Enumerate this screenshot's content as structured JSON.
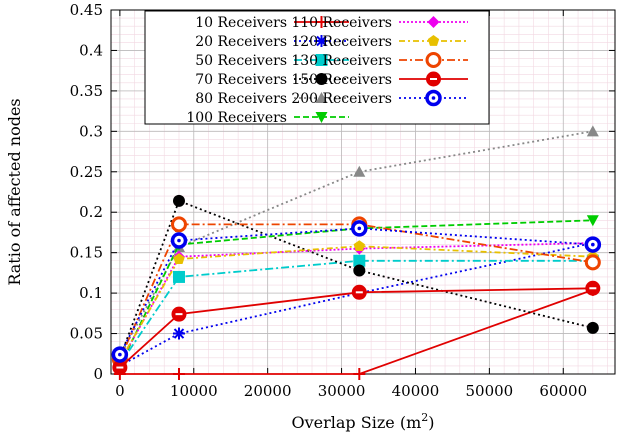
{
  "chart_data": {
    "type": "line",
    "title": "",
    "xlabel": "Overlap Size (m",
    "xlabel_sup": "2",
    "xlabel_end": ")",
    "ylabel": "Ratio of affected nodes",
    "xlim": [
      -1200,
      67000
    ],
    "ylim": [
      0,
      0.45
    ],
    "x_ticks": [
      0,
      10000,
      20000,
      30000,
      40000,
      50000,
      60000
    ],
    "y_ticks": [
      0,
      0.05,
      0.1,
      0.15,
      0.2,
      0.25,
      0.3,
      0.35,
      0.4,
      0.45
    ],
    "x_tick_labels": [
      "0",
      "10000",
      "20000",
      "30000",
      "40000",
      "50000",
      "60000"
    ],
    "y_tick_labels": [
      "0",
      "0.05",
      "0.1",
      "0.15",
      "0.2",
      "0.25",
      "0.3",
      "0.35",
      "0.4",
      "0.45"
    ],
    "grid": true,
    "legend_position": "top",
    "x": [
      0,
      8000,
      32400,
      64000
    ],
    "series": [
      {
        "name": "10 Receivers",
        "values": [
          0,
          0,
          0,
          0.104
        ],
        "color": "#e00000",
        "dash": "",
        "marker": "plus"
      },
      {
        "name": "20 Receivers",
        "values": [
          0.01,
          0.05,
          0.1,
          0.162
        ],
        "color": "#0000ee",
        "dash": "2,3",
        "marker": "star"
      },
      {
        "name": "50 Receivers",
        "values": [
          0.012,
          0.12,
          0.14,
          0.14
        ],
        "color": "#00cccc",
        "dash": "8,3,2,3",
        "marker": "square"
      },
      {
        "name": "70 Receivers",
        "values": [
          0.02,
          0.214,
          0.128,
          0.057
        ],
        "color": "#000000",
        "dash": "2,3",
        "marker": "circle"
      },
      {
        "name": "80 Receivers",
        "values": [
          0.022,
          0.157,
          0.25,
          0.3
        ],
        "color": "#888888",
        "dash": "2,3",
        "marker": "triangle"
      },
      {
        "name": "100 Receivers",
        "values": [
          0.01,
          0.16,
          0.18,
          0.19
        ],
        "color": "#00cc00",
        "dash": "6,3",
        "marker": "triangle-down"
      },
      {
        "name": "110 Receivers",
        "values": [
          0.014,
          0.145,
          0.155,
          0.162
        ],
        "color": "#ee00ee",
        "dash": "2,2",
        "marker": "diamond"
      },
      {
        "name": "120 Receivers",
        "values": [
          0.016,
          0.142,
          0.158,
          0.145
        ],
        "color": "#e8c000",
        "dash": "6,3,2,3",
        "marker": "pentagon"
      },
      {
        "name": "130 Receivers",
        "values": [
          0.018,
          0.185,
          0.185,
          0.138
        ],
        "color": "#ee4400",
        "dash": "8,3,2,3",
        "marker": "ring"
      },
      {
        "name": "150 Receivers",
        "values": [
          0.008,
          0.074,
          0.101,
          0.106
        ],
        "color": "#e00000",
        "dash": "",
        "marker": "ring-bar"
      },
      {
        "name": "200 Receivers",
        "values": [
          0.024,
          0.165,
          0.18,
          0.16
        ],
        "color": "#0000ee",
        "dash": "2,3",
        "marker": "ring-dot"
      }
    ]
  }
}
